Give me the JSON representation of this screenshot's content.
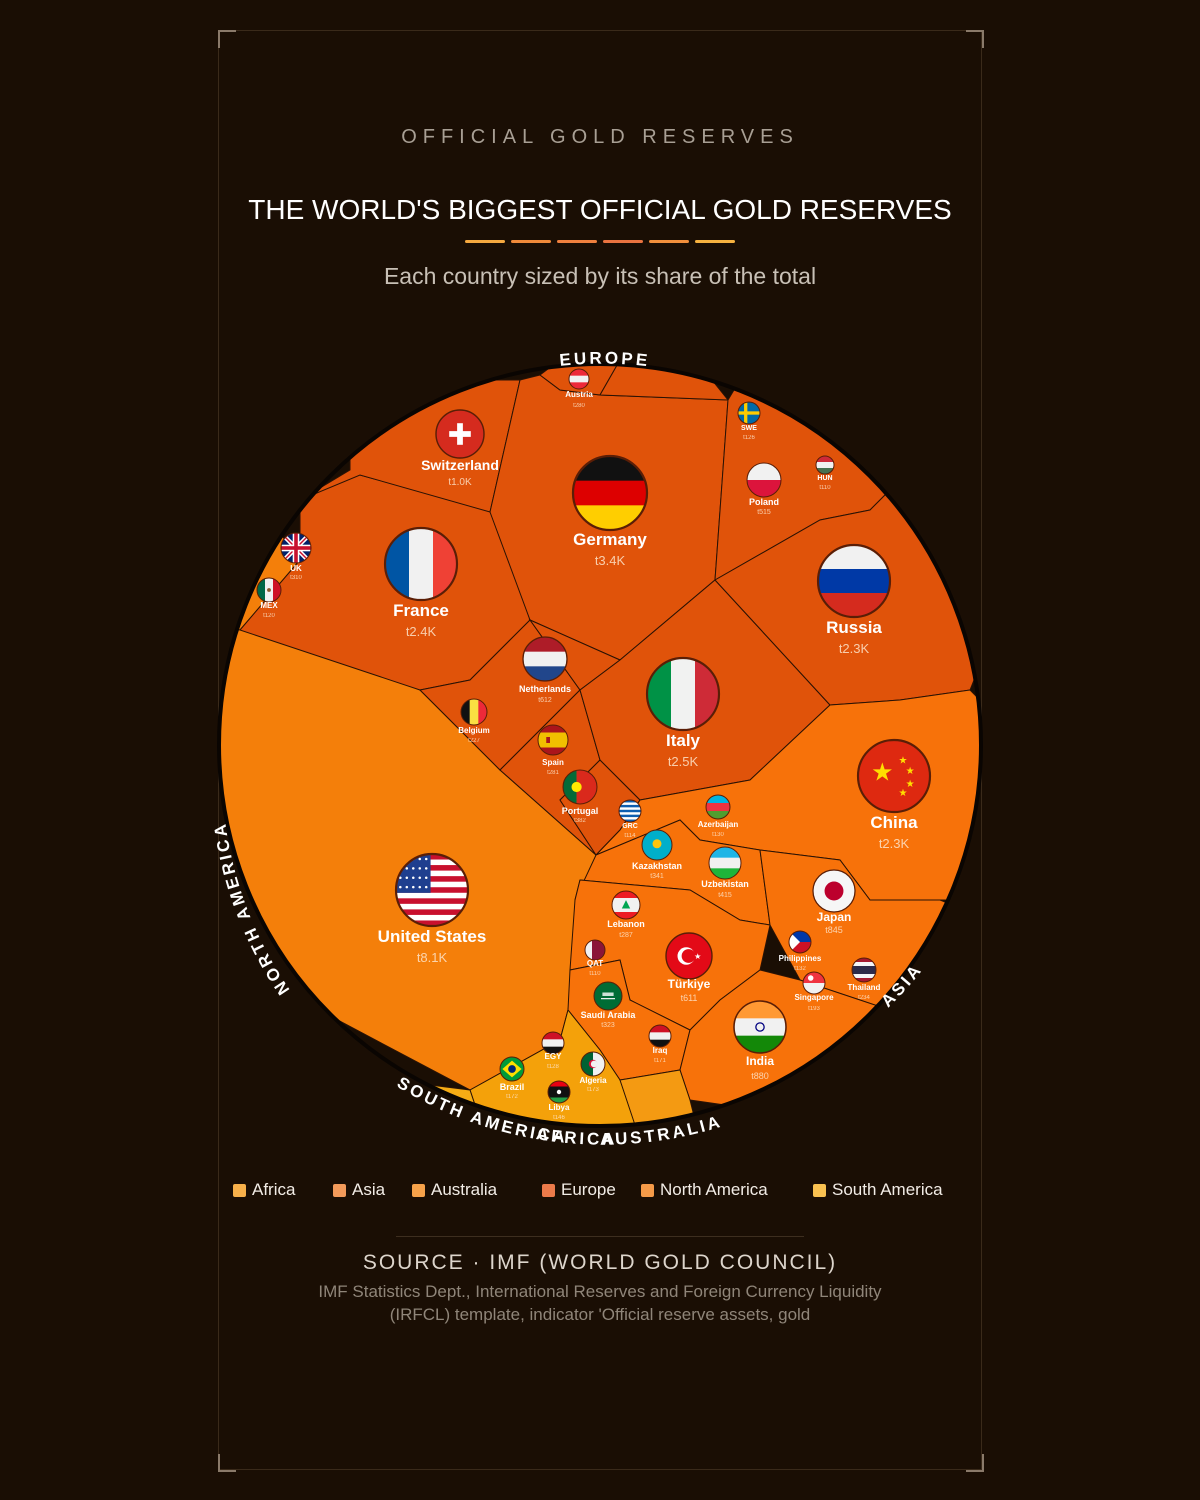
{
  "header": {
    "kicker": "OFFICIAL GOLD RESERVES",
    "title": "THE WORLD'S BIGGEST OFFICIAL GOLD RESERVES",
    "subtitle": "Each country sized by its share of the total",
    "rule_colors": [
      "#f5a940",
      "#f08a3a",
      "#f0803e",
      "#ea7340",
      "#f28f3c",
      "#f6b240"
    ]
  },
  "legend": [
    {
      "label": "Africa",
      "color": "#f7b04a"
    },
    {
      "label": "Asia",
      "color": "#f39a5a"
    },
    {
      "label": "Australia",
      "color": "#f7a24a"
    },
    {
      "label": "Europe",
      "color": "#ec7a4a"
    },
    {
      "label": "North America",
      "color": "#f59a48"
    },
    {
      "label": "South America",
      "color": "#f9c150"
    }
  ],
  "continent_labels": [
    "EUROPE",
    "NORTH AMERICA",
    "ASIA",
    "SOUTH AMERICA",
    "AFRICA",
    "AUSTRALIA"
  ],
  "footer": {
    "source": "SOURCE · IMF (WORLD GOLD COUNCIL)",
    "note": "IMF Statistics Dept., International Reserves and Foreign Currency Liquidity (IRFCL) template, indicator 'Official reserve assets, gold"
  },
  "chart_data": {
    "type": "voronoi-treemap",
    "unit": "tonnes",
    "groups": [
      {
        "name": "Europe",
        "color": "#e0530a"
      },
      {
        "name": "North America",
        "color": "#f47f0a"
      },
      {
        "name": "Asia",
        "color": "#f7720a"
      },
      {
        "name": "Africa",
        "color": "#f4a10a"
      },
      {
        "name": "South America",
        "color": "#f5ac15"
      },
      {
        "name": "Australia",
        "color": "#f49a12"
      }
    ],
    "countries": [
      {
        "label": "United States",
        "value_label": "t8.1K",
        "value": 8133,
        "group": "North America",
        "flag": "us-flag"
      },
      {
        "label": "Germany",
        "value_label": "t3.4K",
        "value": 3352,
        "group": "Europe",
        "flag": "germany-flag"
      },
      {
        "label": "Italy",
        "value_label": "t2.5K",
        "value": 2452,
        "group": "Europe",
        "flag": "italy-flag"
      },
      {
        "label": "France",
        "value_label": "t2.4K",
        "value": 2437,
        "group": "Europe",
        "flag": "france-flag"
      },
      {
        "label": "Russia",
        "value_label": "t2.3K",
        "value": 2333,
        "group": "Europe",
        "flag": "russia-flag"
      },
      {
        "label": "China",
        "value_label": "t2.3K",
        "value": 2280,
        "group": "Asia",
        "flag": "china-flag"
      },
      {
        "label": "Switzerland",
        "value_label": "t1.0K",
        "value": 1040,
        "group": "Europe",
        "flag": "switzerland-flag"
      },
      {
        "label": "India",
        "value_label": "t880",
        "value": 880,
        "group": "Asia",
        "flag": "india-flag"
      },
      {
        "label": "Japan",
        "value_label": "t845",
        "value": 845,
        "group": "Asia",
        "flag": "japan-flag"
      },
      {
        "label": "Türkiye",
        "value_label": "t611",
        "value": 611,
        "group": "Asia",
        "flag": "turkey-flag"
      },
      {
        "label": "Netherlands",
        "value_label": "t612",
        "value": 612,
        "group": "Europe",
        "flag": "netherlands-flag"
      },
      {
        "label": "Poland",
        "value_label": "t515",
        "value": 515,
        "group": "Europe",
        "flag": "poland-flag"
      },
      {
        "label": "Uzbekistan",
        "value_label": "t415",
        "value": 415,
        "group": "Asia",
        "flag": "uzbekistan-flag"
      },
      {
        "label": "Saudi Arabia",
        "value_label": "t323",
        "value": 323,
        "group": "Asia",
        "flag": "saudi-flag"
      },
      {
        "label": "Kazakhstan",
        "value_label": "t341",
        "value": 341,
        "group": "Asia",
        "flag": "kazakhstan-flag"
      },
      {
        "label": "Thailand",
        "value_label": "t234",
        "value": 234,
        "group": "Asia",
        "flag": "thailand-flag"
      },
      {
        "label": "Singapore",
        "value_label": "t193",
        "value": 193,
        "group": "Asia",
        "flag": "singapore-flag"
      },
      {
        "label": "Lebanon",
        "value_label": "t287",
        "value": 287,
        "group": "Asia",
        "flag": "lebanon-flag"
      },
      {
        "label": "Spain",
        "value_label": "t281",
        "value": 281,
        "group": "Europe",
        "flag": "spain-flag"
      },
      {
        "label": "Austria",
        "value_label": "t280",
        "value": 280,
        "group": "Europe",
        "flag": "austria-flag"
      },
      {
        "label": "Portugal",
        "value_label": "t382",
        "value": 382,
        "group": "Europe",
        "flag": "portugal-flag"
      },
      {
        "label": "Belgium",
        "value_label": "t227",
        "value": 227,
        "group": "Europe",
        "flag": "belgium-flag"
      },
      {
        "label": "Philippines",
        "value_label": "t132",
        "value": 132,
        "group": "Asia",
        "flag": "philippines-flag"
      },
      {
        "label": "Azerbaijan",
        "value_label": "t130",
        "value": 130,
        "group": "Asia",
        "flag": "azerbaijan-flag"
      },
      {
        "label": "Iraq",
        "value_label": "t171",
        "value": 171,
        "group": "Asia",
        "flag": "iraq-flag"
      },
      {
        "label": "Brazil",
        "value_label": "t172",
        "value": 172,
        "group": "South America",
        "flag": "brazil-flag"
      },
      {
        "label": "EGY",
        "value_label": "t128",
        "value": 128,
        "group": "Africa",
        "flag": "egypt-flag"
      },
      {
        "label": "Algeria",
        "value_label": "t173",
        "value": 173,
        "group": "Africa",
        "flag": "algeria-flag"
      },
      {
        "label": "Libya",
        "value_label": "t146",
        "value": 146,
        "group": "Africa",
        "flag": "libya-flag"
      },
      {
        "label": "UK",
        "value_label": "t310",
        "value": 310,
        "group": "Europe",
        "flag": "uk-flag"
      },
      {
        "label": "MEX",
        "value_label": "t120",
        "value": 120,
        "group": "North America",
        "flag": "mexico-flag"
      },
      {
        "label": "QAT",
        "value_label": "t110",
        "value": 110,
        "group": "Asia",
        "flag": "qatar-flag"
      },
      {
        "label": "GRC",
        "value_label": "t114",
        "value": 114,
        "group": "Europe",
        "flag": "greece-flag"
      },
      {
        "label": "SWE",
        "value_label": "t126",
        "value": 126,
        "group": "Europe",
        "flag": "sweden-flag"
      },
      {
        "label": "HUN",
        "value_label": "t110",
        "value": 110,
        "group": "Europe",
        "flag": "hungary-flag"
      }
    ]
  }
}
